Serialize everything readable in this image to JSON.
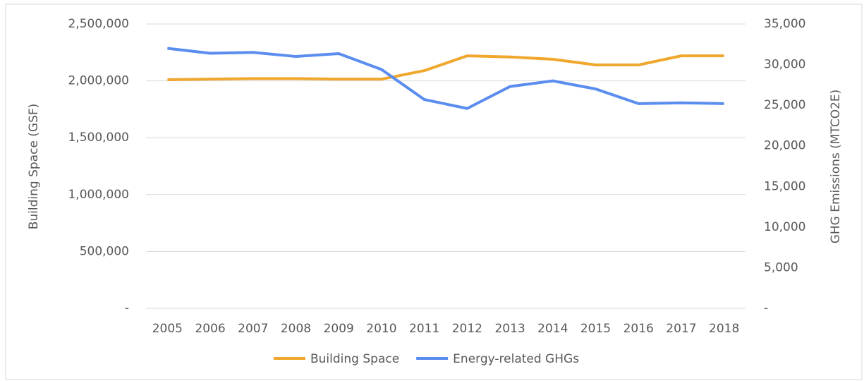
{
  "chart_data": {
    "type": "line",
    "categories": [
      "2005",
      "2006",
      "2007",
      "2008",
      "2009",
      "2010",
      "2011",
      "2012",
      "2013",
      "2014",
      "2015",
      "2016",
      "2017",
      "2018"
    ],
    "y_label": "Building Space (GSF)",
    "y2_label": "GHG Emissions (MTCO2E)",
    "ylim": [
      0,
      2500000
    ],
    "yticks": [
      {
        "value": 0,
        "label": "-"
      },
      {
        "value": 500000,
        "label": "500,000"
      },
      {
        "value": 1000000,
        "label": "1,000,000"
      },
      {
        "value": 1500000,
        "label": "1,500,000"
      },
      {
        "value": 2000000,
        "label": "2,000,000"
      },
      {
        "value": 2500000,
        "label": "2,500,000"
      }
    ],
    "y2lim": [
      0,
      35000
    ],
    "y2ticks": [
      {
        "value": 0,
        "label": "-"
      },
      {
        "value": 5000,
        "label": "5,000"
      },
      {
        "value": 10000,
        "label": "10,000"
      },
      {
        "value": 15000,
        "label": "15,000"
      },
      {
        "value": 20000,
        "label": "20,000"
      },
      {
        "value": 25000,
        "label": "25,000"
      },
      {
        "value": 30000,
        "label": "30,000"
      },
      {
        "value": 35000,
        "label": "35,000"
      }
    ],
    "grid": true,
    "legend": "bottom",
    "series": [
      {
        "name": "Building Space",
        "color": "#f0a72e",
        "axis": "y",
        "values": [
          2010000,
          2015000,
          2020000,
          2020000,
          2015000,
          2015000,
          2090000,
          2220000,
          2210000,
          2190000,
          2140000,
          2140000,
          2220000,
          2220000
        ]
      },
      {
        "name": "Energy-related GHGs",
        "color": "#5b8def",
        "axis": "y2",
        "values": [
          32000,
          31400,
          31500,
          31000,
          31350,
          29400,
          25700,
          24600,
          27300,
          28000,
          27000,
          25200,
          25300,
          25200
        ]
      }
    ]
  }
}
